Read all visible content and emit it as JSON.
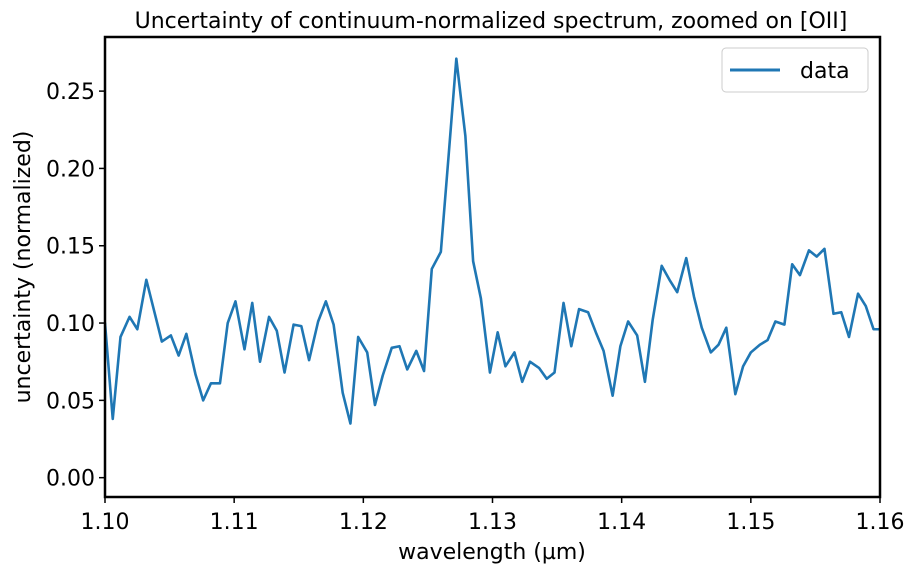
{
  "chart_data": {
    "type": "line",
    "title": "Uncertainty of continuum-normalized spectrum, zoomed on [OII]",
    "xlabel": "wavelength (µm)",
    "ylabel": "uncertainty (normalized)",
    "xlim": [
      1.1,
      1.16
    ],
    "ylim": [
      -0.0125,
      0.285
    ],
    "x_ticks": [
      1.1,
      1.11,
      1.12,
      1.13,
      1.14,
      1.15,
      1.16
    ],
    "x_tick_labels": [
      "1.10",
      "1.11",
      "1.12",
      "1.13",
      "1.14",
      "1.15",
      "1.16"
    ],
    "y_ticks": [
      0.0,
      0.05,
      0.1,
      0.15,
      0.2,
      0.25
    ],
    "y_tick_labels": [
      "0.00",
      "0.05",
      "0.10",
      "0.15",
      "0.20",
      "0.25"
    ],
    "grid": false,
    "legend_position": "top-right",
    "series": [
      {
        "name": "data",
        "color": "#1f77b4",
        "x": [
          1.1,
          1.1006,
          1.1012,
          1.1019,
          1.1025,
          1.1032,
          1.1038,
          1.1044,
          1.1051,
          1.1057,
          1.1063,
          1.107,
          1.1076,
          1.1082,
          1.1089,
          1.1095,
          1.1101,
          1.1108,
          1.1114,
          1.112,
          1.1127,
          1.1133,
          1.1139,
          1.1146,
          1.1152,
          1.1158,
          1.1165,
          1.1171,
          1.1177,
          1.1184,
          1.119,
          1.1196,
          1.1203,
          1.1209,
          1.1215,
          1.1222,
          1.1228,
          1.1234,
          1.1241,
          1.1247,
          1.1253,
          1.126,
          1.1266,
          1.1272,
          1.1279,
          1.1285,
          1.1291,
          1.1298,
          1.1304,
          1.131,
          1.1317,
          1.1323,
          1.1329,
          1.1336,
          1.1342,
          1.1348,
          1.1355,
          1.1361,
          1.1367,
          1.1374,
          1.138,
          1.1386,
          1.1393,
          1.1399,
          1.1405,
          1.1412,
          1.1418,
          1.1424,
          1.1431,
          1.1437,
          1.1443,
          1.145,
          1.1456,
          1.1462,
          1.1469,
          1.1475,
          1.1481,
          1.1488,
          1.1494,
          1.15,
          1.1507,
          1.1513,
          1.1519,
          1.1526,
          1.1532,
          1.1538,
          1.1545,
          1.1551,
          1.1557,
          1.1564,
          1.157,
          1.1576,
          1.1583,
          1.1589,
          1.1595,
          1.16
        ],
        "values": [
          0.1,
          0.038,
          0.091,
          0.104,
          0.096,
          0.128,
          0.108,
          0.088,
          0.092,
          0.079,
          0.093,
          0.067,
          0.05,
          0.061,
          0.061,
          0.1,
          0.114,
          0.083,
          0.113,
          0.075,
          0.104,
          0.095,
          0.068,
          0.099,
          0.098,
          0.076,
          0.101,
          0.114,
          0.099,
          0.055,
          0.035,
          0.091,
          0.081,
          0.047,
          0.066,
          0.084,
          0.085,
          0.07,
          0.082,
          0.069,
          0.135,
          0.146,
          0.208,
          0.271,
          0.221,
          0.14,
          0.116,
          0.068,
          0.094,
          0.072,
          0.081,
          0.062,
          0.075,
          0.071,
          0.064,
          0.068,
          0.113,
          0.085,
          0.109,
          0.107,
          0.094,
          0.082,
          0.053,
          0.085,
          0.101,
          0.092,
          0.062,
          0.102,
          0.137,
          0.128,
          0.12,
          0.142,
          0.117,
          0.097,
          0.081,
          0.086,
          0.097,
          0.054,
          0.072,
          0.081,
          0.086,
          0.089,
          0.101,
          0.099,
          0.138,
          0.131,
          0.147,
          0.143,
          0.148,
          0.106,
          0.107,
          0.091,
          0.119,
          0.111,
          0.096,
          0.096
        ]
      }
    ]
  }
}
